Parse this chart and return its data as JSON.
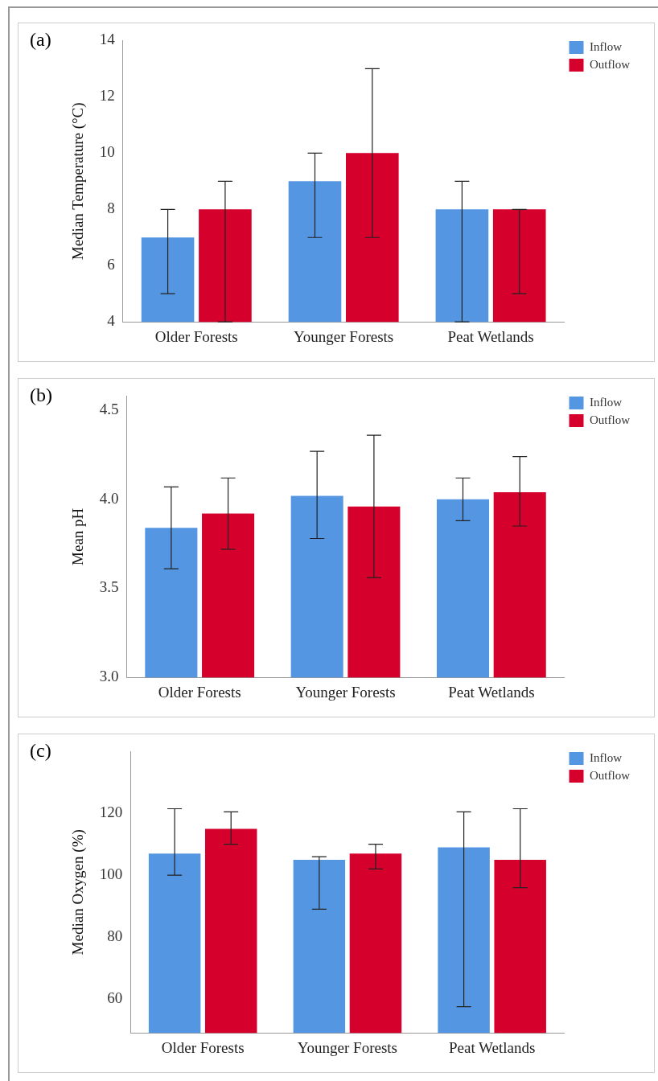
{
  "chart_data": [
    {
      "type": "bar",
      "ylabel": "Median Temperature (°C)",
      "annotations": [
        "(a)"
      ],
      "legend": "top right",
      "categories": [
        "Older Forests",
        "Younger Forests",
        "Peat Wetlands"
      ],
      "ylim": [
        4,
        14
      ],
      "yticks": [
        4,
        6,
        8,
        10,
        12,
        14
      ],
      "series": [
        {
          "name": "Inflow",
          "color": "#5596e3",
          "values": [
            7,
            9,
            8
          ],
          "errors": [
            [
              5,
              8
            ],
            [
              7,
              10
            ],
            [
              4,
              9
            ]
          ]
        },
        {
          "name": "Outflow",
          "color": "#d5002c",
          "values": [
            8,
            10,
            8
          ],
          "errors": [
            [
              4,
              9
            ],
            [
              7,
              13
            ],
            [
              5,
              8
            ]
          ]
        }
      ]
    },
    {
      "type": "bar",
      "ylabel": "Mean pH",
      "annotations": [
        "(b)"
      ],
      "legend": "top right",
      "categories": [
        "Older Forests",
        "Younger Forests",
        "Peat Wetlands"
      ],
      "ylim": [
        3,
        4.58
      ],
      "yticks": [
        {
          "value": 3,
          "label": "3.0"
        },
        3.5,
        {
          "value": 4,
          "label": "4.0"
        },
        4.5
      ],
      "series": [
        {
          "name": "Inflow",
          "color": "#5596e3",
          "values": [
            3.84,
            4.02,
            4.0
          ],
          "errors": [
            [
              3.61,
              4.07
            ],
            [
              3.78,
              4.27
            ],
            [
              3.88,
              4.12
            ]
          ]
        },
        {
          "name": "Outflow",
          "color": "#d5002c",
          "values": [
            3.92,
            3.96,
            4.04
          ],
          "errors": [
            [
              3.72,
              4.12
            ],
            [
              3.56,
              4.36
            ],
            [
              3.85,
              4.24
            ]
          ]
        }
      ]
    },
    {
      "type": "bar",
      "ylabel": "Median Oxygen (%)",
      "annotations": [
        "(c)"
      ],
      "legend": "top right",
      "categories": [
        "Older Forests",
        "Younger Forests",
        "Peat Wetlands"
      ],
      "ylim": [
        49,
        140
      ],
      "yticks": [
        60,
        80,
        100,
        120
      ],
      "series": [
        {
          "name": "Inflow",
          "color": "#5596e3",
          "values": [
            107,
            105,
            109
          ],
          "errors": [
            [
              100,
              121.5
            ],
            [
              89,
              106
            ],
            [
              57.5,
              120.5
            ]
          ]
        },
        {
          "name": "Outflow",
          "color": "#d5002c",
          "values": [
            115,
            107,
            105
          ],
          "errors": [
            [
              110,
              120.5
            ],
            [
              102,
              110
            ],
            [
              96,
              121.5
            ]
          ]
        }
      ]
    }
  ]
}
